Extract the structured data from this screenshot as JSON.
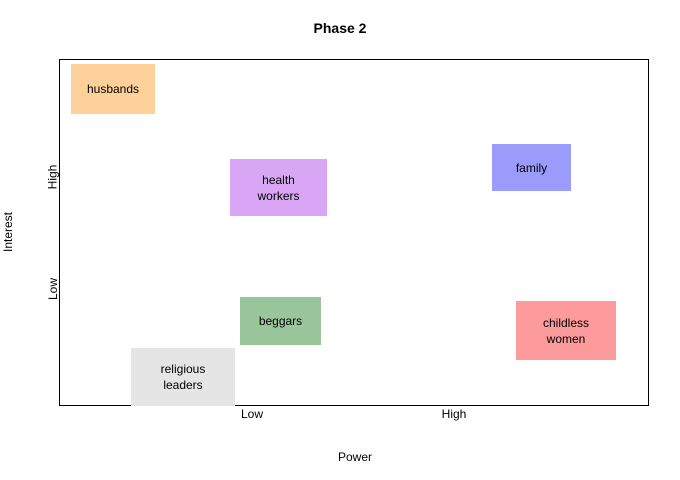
{
  "title": "Phase 2",
  "axes": {
    "x_label": "Power",
    "y_label": "Interest",
    "x_ticks": [
      "Low",
      "High"
    ],
    "y_ticks": [
      "Low",
      "High"
    ]
  },
  "stakeholders": [
    {
      "id": "husbands",
      "label": "husbands",
      "color": "#fed19a"
    },
    {
      "id": "health-workers",
      "label": "health\nworkers",
      "color": "#d8a6f5"
    },
    {
      "id": "family",
      "label": "family",
      "color": "#9a9bfb"
    },
    {
      "id": "beggars",
      "label": "beggars",
      "color": "#9ac49a"
    },
    {
      "id": "childless-women",
      "label": "childless\nwomen",
      "color": "#fd9a9b"
    },
    {
      "id": "religious-leaders",
      "label": "religious\nleaders",
      "color": "#e5e5e5"
    }
  ]
}
